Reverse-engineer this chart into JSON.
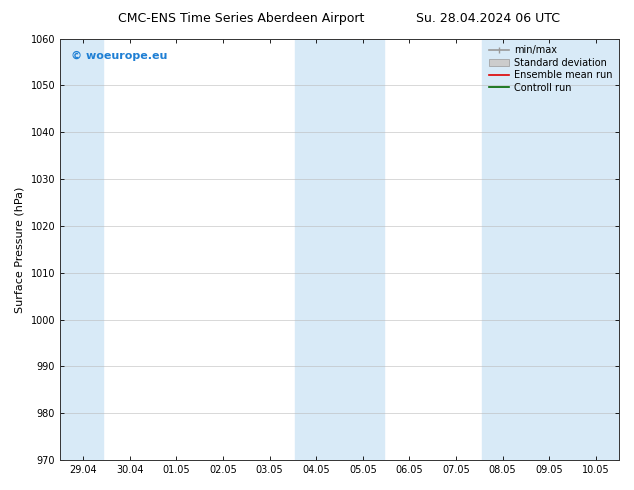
{
  "title_left": "CMC-ENS Time Series Aberdeen Airport",
  "title_right": "Su. 28.04.2024 06 UTC",
  "ylabel": "Surface Pressure (hPa)",
  "ylim": [
    970,
    1060
  ],
  "yticks": [
    970,
    980,
    990,
    1000,
    1010,
    1020,
    1030,
    1040,
    1050,
    1060
  ],
  "xtick_labels": [
    "29.04",
    "30.04",
    "01.05",
    "02.05",
    "03.05",
    "04.05",
    "05.05",
    "06.05",
    "07.05",
    "08.05",
    "09.05",
    "10.05"
  ],
  "xtick_positions": [
    0,
    1,
    2,
    3,
    4,
    5,
    6,
    7,
    8,
    9,
    10,
    11
  ],
  "xlim": [
    -0.5,
    11.5
  ],
  "shaded_bands": [
    {
      "x_start": -0.5,
      "x_end": 0.42
    },
    {
      "x_start": 4.55,
      "x_end": 6.45
    },
    {
      "x_start": 8.55,
      "x_end": 11.5
    }
  ],
  "shade_color": "#d8eaf7",
  "background_color": "#ffffff",
  "watermark_text": "© woeurope.eu",
  "watermark_color": "#1e7fd4",
  "legend_items": [
    {
      "label": "min/max",
      "color": "#999999",
      "linestyle": "-",
      "linewidth": 1.2
    },
    {
      "label": "Standard deviation",
      "color": "#cccccc",
      "linestyle": "-",
      "linewidth": 5
    },
    {
      "label": "Ensemble mean run",
      "color": "#dd0000",
      "linestyle": "-",
      "linewidth": 1.2
    },
    {
      "label": "Controll run",
      "color": "#006600",
      "linestyle": "-",
      "linewidth": 1.2
    }
  ],
  "title_fontsize": 9,
  "tick_fontsize": 7,
  "ylabel_fontsize": 8,
  "watermark_fontsize": 8,
  "grid_color": "#bbbbbb",
  "grid_linewidth": 0.4,
  "legend_fontsize": 7
}
